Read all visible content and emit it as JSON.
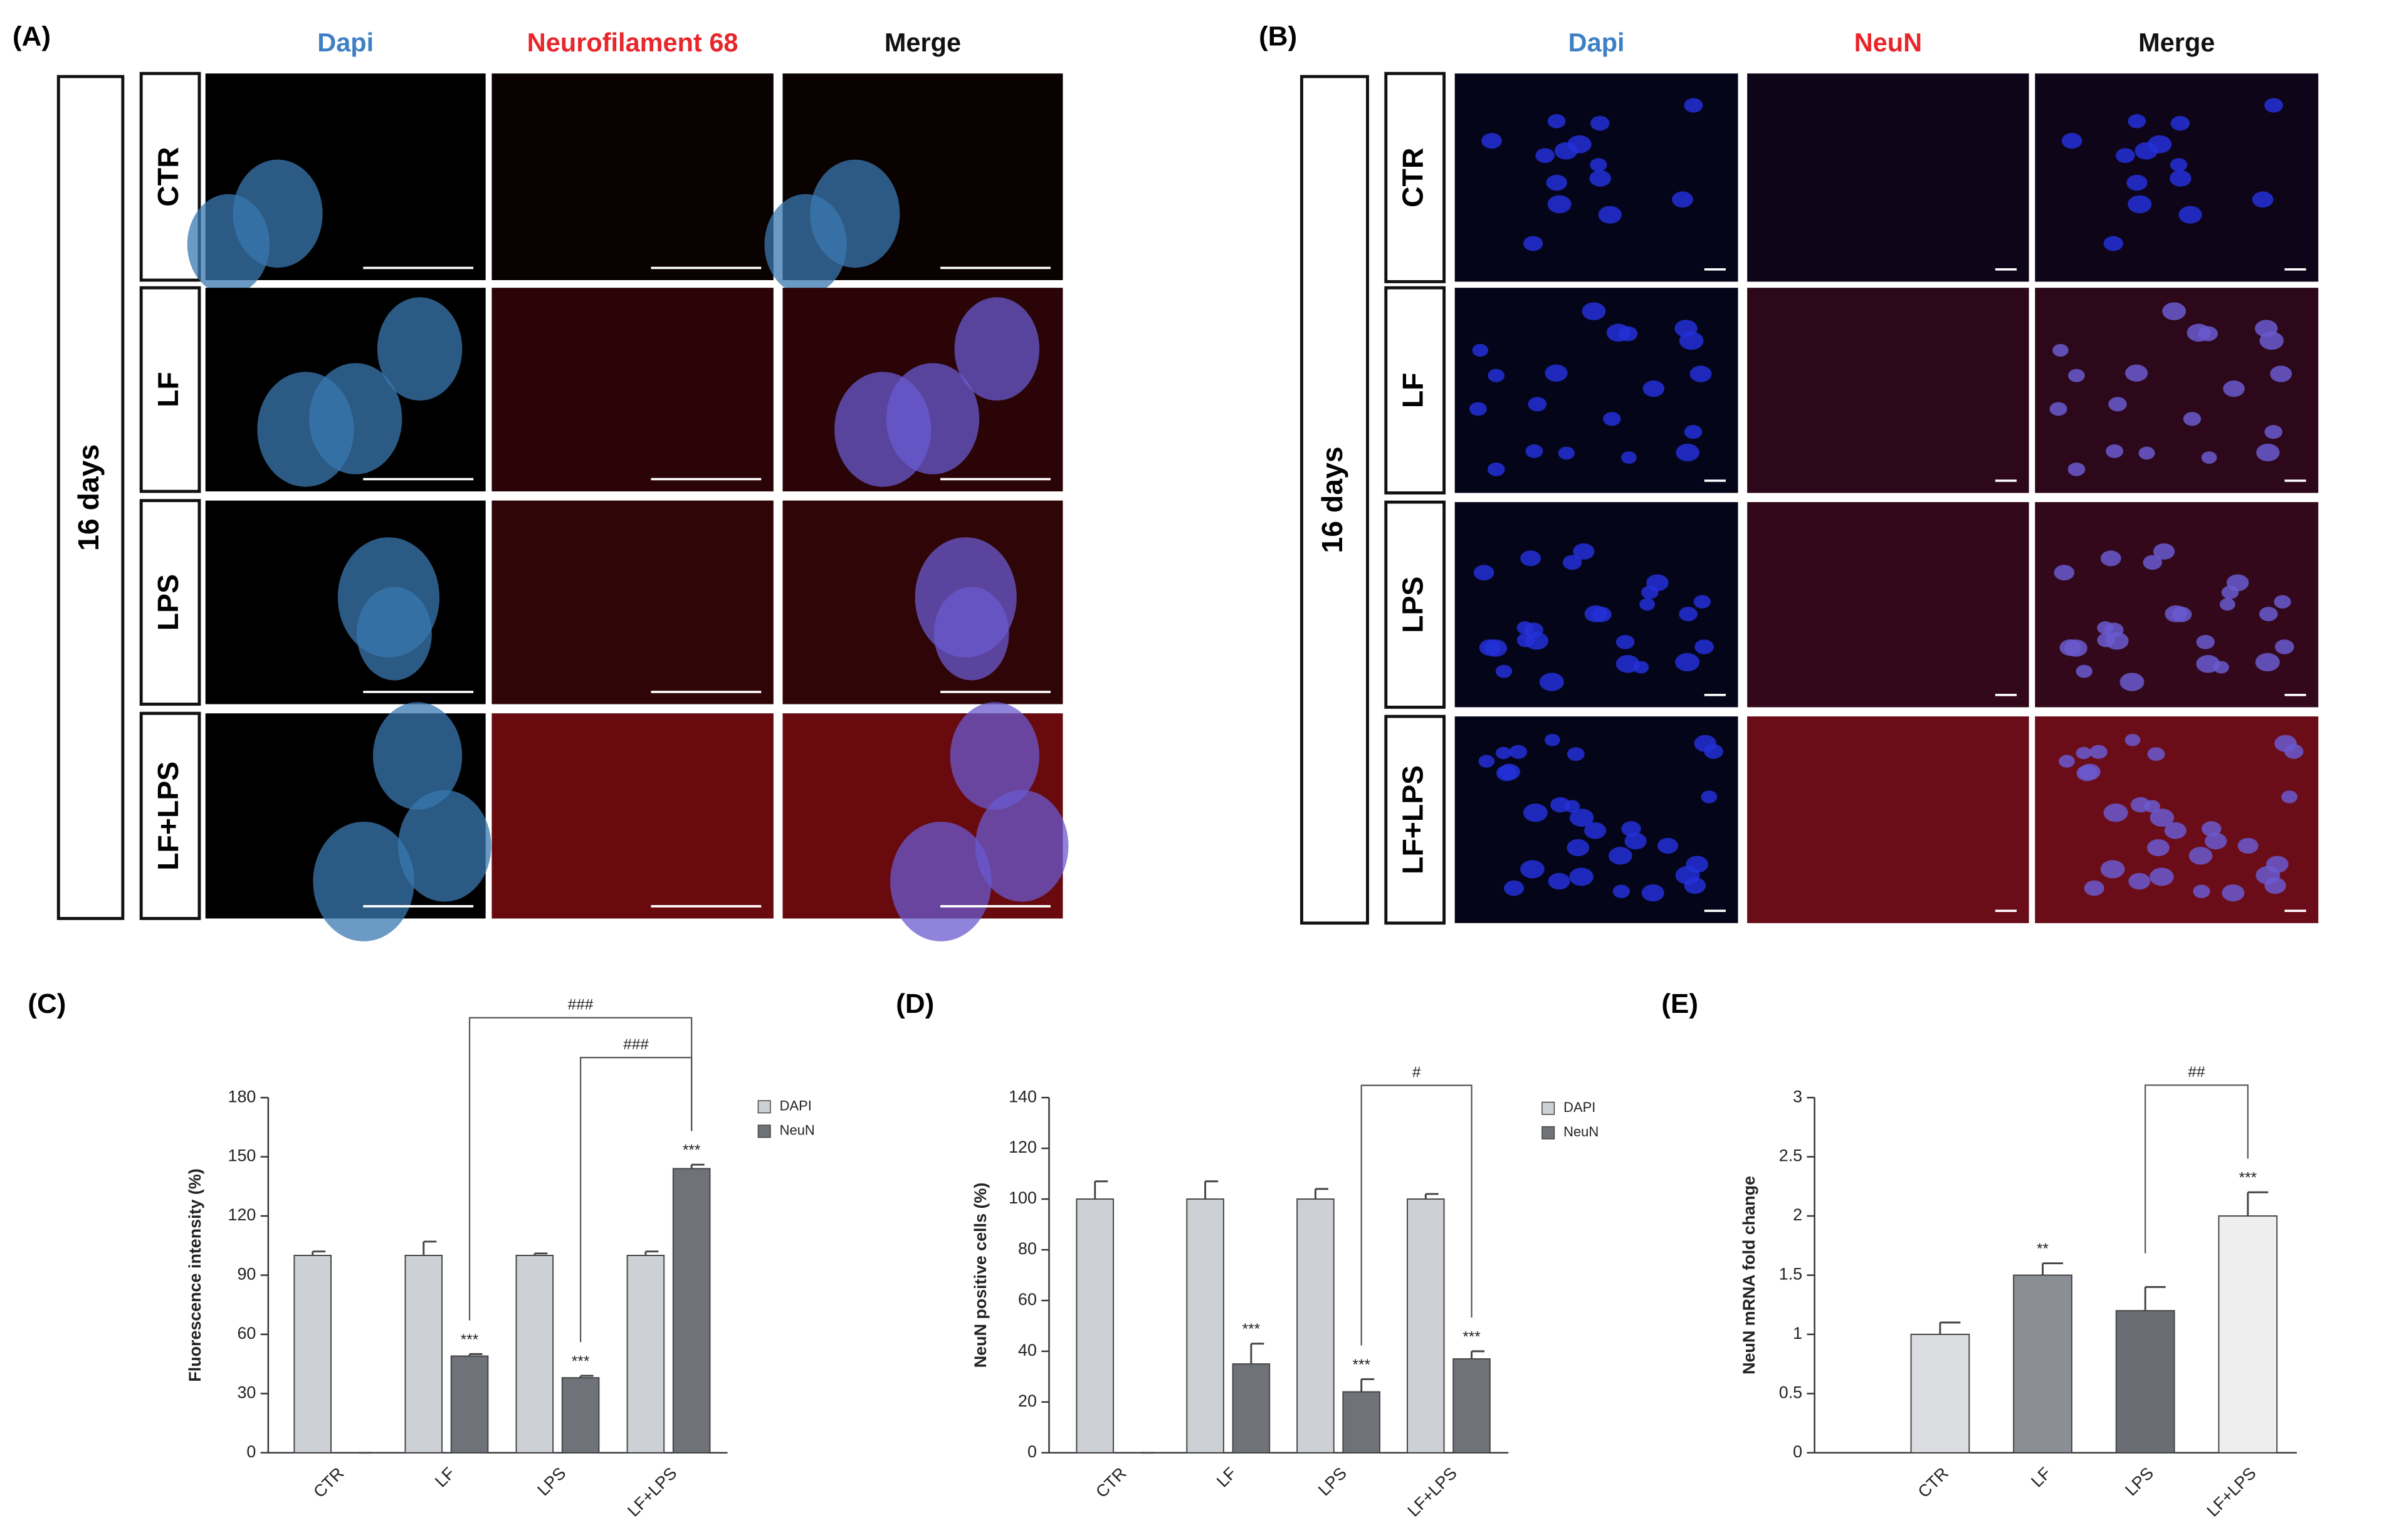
{
  "panel_a": {
    "label": "(A)",
    "period": "16 days",
    "columns": [
      "Dapi",
      "Neurofilament 68",
      "Merge"
    ],
    "column_colors": [
      "#3f7fc4",
      "#e8262b",
      "#111111"
    ],
    "rows": [
      "CTR",
      "LF",
      "LPS",
      "LF+LPS"
    ]
  },
  "panel_b": {
    "label": "(B)",
    "period": "16 days",
    "columns": [
      "Dapi",
      "NeuN",
      "Merge"
    ],
    "column_colors": [
      "#3f7fc4",
      "#e8262b",
      "#111111"
    ],
    "rows": [
      "CTR",
      "LF",
      "LPS",
      "LF+LPS"
    ]
  },
  "chart_data": [
    {
      "panel": "(C)",
      "type": "bar",
      "y_label": "Fluorescence intensity (%)",
      "categories": [
        "CTR",
        "LF",
        "LPS",
        "LF+LPS"
      ],
      "series": [
        {
          "name": "DAPI",
          "color": "#cdd0d5",
          "values": [
            100,
            100,
            100,
            100
          ],
          "errors": [
            2,
            7,
            1,
            2
          ]
        },
        {
          "name": "NeuN",
          "color": "#6f7379",
          "values": [
            0,
            49,
            38,
            144
          ],
          "errors": [
            0,
            1,
            1,
            2
          ],
          "significance": [
            null,
            "***",
            "***",
            "***"
          ]
        }
      ],
      "ylim": [
        0,
        180
      ],
      "yticks": [
        0,
        30,
        60,
        90,
        120,
        150,
        180
      ],
      "comparisons": [
        {
          "label": "###",
          "categories": [
            "LPS",
            "LF+LPS"
          ]
        },
        {
          "label": "###",
          "categories": [
            "LF",
            "LF+LPS"
          ]
        }
      ],
      "legend": "upper right"
    },
    {
      "panel": "(D)",
      "type": "bar",
      "y_label": "NeuN positive cells (%)",
      "categories": [
        "CTR",
        "LF",
        "LPS",
        "LF+LPS"
      ],
      "series": [
        {
          "name": "DAPI",
          "color": "#cdd0d5",
          "values": [
            100,
            100,
            100,
            100
          ],
          "errors": [
            7,
            7,
            4,
            2
          ]
        },
        {
          "name": "NeuN",
          "color": "#6f7379",
          "values": [
            0,
            35,
            24,
            37
          ],
          "errors": [
            0,
            8,
            5,
            3
          ],
          "significance": [
            null,
            "***",
            "***",
            "***"
          ]
        }
      ],
      "ylim": [
        0,
        140
      ],
      "yticks": [
        0,
        20,
        40,
        60,
        80,
        100,
        120,
        140
      ],
      "comparisons": [
        {
          "label": "#",
          "categories": [
            "LPS",
            "LF+LPS"
          ]
        }
      ],
      "legend": "upper right"
    },
    {
      "panel": "(E)",
      "type": "bar",
      "y_label": "NeuN mRNA fold change",
      "categories": [
        "CTR",
        "LF",
        "LPS",
        "LF+LPS"
      ],
      "values": [
        1,
        1.5,
        1.2,
        2
      ],
      "errors": [
        0.1,
        0.1,
        0.2,
        0.2
      ],
      "significance": [
        null,
        "**",
        null,
        "***"
      ],
      "colors": [
        "#dcdde0",
        "#8b8e94",
        "#6a6d73",
        "#eeeeef"
      ],
      "ylim": [
        0,
        3
      ],
      "yticks": [
        0,
        0.5,
        1,
        1.5,
        2,
        2.5,
        3
      ],
      "comparisons": [
        {
          "label": "##",
          "categories": [
            "LPS",
            "LF+LPS"
          ]
        }
      ]
    }
  ]
}
